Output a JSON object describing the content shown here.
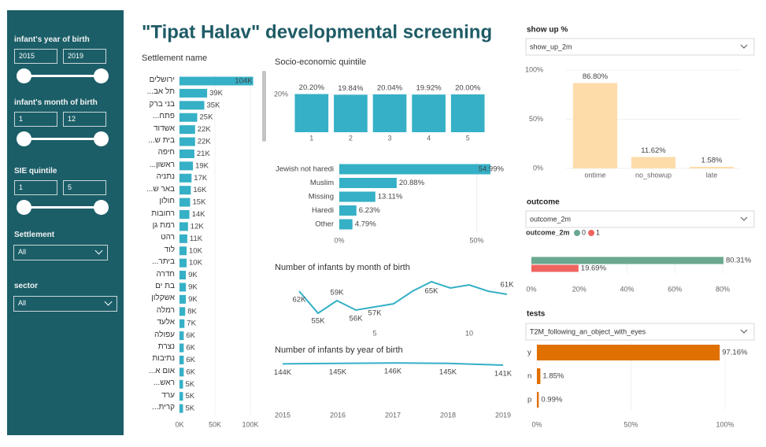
{
  "sidebar": {
    "slicers": [
      {
        "label": "infant's year of birth",
        "range": [
          2015,
          2019
        ]
      },
      {
        "label": "infant's month of birth",
        "range": [
          1,
          12
        ]
      },
      {
        "label": "SIE quintile",
        "range": [
          1,
          5
        ]
      }
    ],
    "dropdowns": [
      {
        "label": "Settlement",
        "value": "All"
      },
      {
        "label": "sector",
        "value": "All"
      }
    ]
  },
  "title": "\"Tipat Halav\" developmental screening",
  "chart_data": [
    {
      "type": "hbar",
      "title": "Settlement name",
      "categories": [
        "ירושלים",
        "תל אב...",
        "בני ברק",
        "פתח...",
        "אשדוד",
        "בית ש...",
        "חיפה",
        "ראשון...",
        "נתניה",
        "באר ש...",
        "חולון",
        "רחובות",
        "רמת גן",
        "רהט",
        "לוד",
        "ביתר...",
        "חדרה",
        "בת ים",
        "אשקלון",
        "רמלה",
        "אלעד",
        "עפולה",
        "נצרת",
        "נתיבות",
        "אום א...",
        "ראש...",
        "ערד",
        "קרית..."
      ],
      "values": [
        104000,
        39000,
        35000,
        25000,
        22000,
        22000,
        21000,
        19000,
        17000,
        16000,
        15000,
        14000,
        12000,
        11000,
        10000,
        10000,
        9000,
        9000,
        9000,
        8000,
        7000,
        6000,
        6000,
        6000,
        6000,
        5000,
        5000,
        5000
      ],
      "value_labels": [
        "104K",
        "39K",
        "35K",
        "25K",
        "22K",
        "22K",
        "21K",
        "19K",
        "17K",
        "16K",
        "15K",
        "14K",
        "12K",
        "11K",
        "10K",
        "10K",
        "9K",
        "9K",
        "9K",
        "8K",
        "7K",
        "6K",
        "6K",
        "6K",
        "6K",
        "5K",
        "5K",
        "5K"
      ],
      "color": "#35b0c6",
      "xlim": [
        0,
        105000
      ],
      "xticks": [
        {
          "value": 0,
          "label": "0K"
        },
        {
          "value": 50000,
          "label": "50K"
        },
        {
          "value": 100000,
          "label": "100K"
        }
      ]
    },
    {
      "type": "bar",
      "title": "Socio-economic quintile",
      "categories": [
        1,
        2,
        3,
        4,
        5
      ],
      "values": [
        20.2,
        19.84,
        20.04,
        19.92,
        20
      ],
      "value_labels": [
        "20.20%",
        "19.84%",
        "20.04%",
        "19.92%",
        "20.00%"
      ],
      "color": "#35b0c6",
      "ylim": [
        0,
        21
      ],
      "yticks": [
        {
          "value": 20,
          "label": "20%"
        }
      ]
    },
    {
      "type": "hbar",
      "categories": [
        "Jewish not haredi",
        "Muslim",
        "Missing",
        "Haredi",
        "Other"
      ],
      "values": [
        54.99,
        20.88,
        13.11,
        6.23,
        4.79
      ],
      "value_labels": [
        "54.99%",
        "20.88%",
        "13.11%",
        "6.23%",
        "4.79%"
      ],
      "color": "#35b0c6",
      "xlim": [
        0,
        55
      ],
      "xticks": [
        {
          "value": 0,
          "label": "0%"
        },
        {
          "value": 50,
          "label": "50%"
        }
      ]
    },
    {
      "type": "line",
      "title": "Number of infants by month of birth",
      "x": [
        1,
        2,
        3,
        4,
        5,
        6,
        7,
        8,
        9,
        10,
        11,
        12
      ],
      "values": [
        62000,
        55000,
        59000,
        56000,
        57000,
        58000,
        62000,
        65000,
        63000,
        64000,
        62000,
        61000
      ],
      "value_labels": [
        "62K",
        "55K",
        "59K",
        "56K",
        "57K",
        null,
        null,
        "65K",
        null,
        null,
        null,
        "61K"
      ],
      "color": "#35b0c6",
      "xlim": [
        1,
        12
      ],
      "xticks": [
        5,
        10
      ],
      "ylim": [
        54000,
        66000
      ]
    },
    {
      "type": "line",
      "title": "Number of infants by year of birth",
      "x": [
        2015,
        2016,
        2017,
        2018,
        2019
      ],
      "values": [
        144000,
        145000,
        146000,
        145000,
        141000
      ],
      "value_labels": [
        "144K",
        "145K",
        "146K",
        "145K",
        "141K"
      ],
      "color": "#35b0c6",
      "xlim": [
        2015,
        2019
      ],
      "xticks": [
        2015,
        2016,
        2017,
        2018,
        2019
      ],
      "ylim": [
        0,
        150000
      ]
    },
    {
      "type": "bar",
      "title": "show up %",
      "dropdown": "show_up_2m",
      "categories": [
        "ontime",
        "no_showup",
        "late"
      ],
      "values": [
        86.8,
        11.62,
        1.58
      ],
      "value_labels": [
        "86.80%",
        "11.62%",
        "1.58%"
      ],
      "color": "#fddcaa",
      "ylim": [
        0,
        100
      ],
      "yticks": [
        {
          "value": 0,
          "label": "0%"
        },
        {
          "value": 50,
          "label": "50%"
        },
        {
          "value": 100,
          "label": "100%"
        }
      ]
    },
    {
      "type": "hbar",
      "title": "outcome",
      "dropdown": "outcome_2m",
      "legend_title": "outcome_2m",
      "categories": [
        0,
        1
      ],
      "values": [
        80.31,
        19.69
      ],
      "value_labels": [
        "80.31%",
        "19.69%"
      ],
      "colors": [
        "#6aa88f",
        "#f0645f"
      ],
      "xlim": [
        0,
        80
      ],
      "xticks": [
        {
          "value": 0,
          "label": "0%"
        },
        {
          "value": 20,
          "label": "20%"
        },
        {
          "value": 40,
          "label": "40%"
        },
        {
          "value": 60,
          "label": "60%"
        },
        {
          "value": 80,
          "label": "80%"
        }
      ]
    },
    {
      "type": "hbar",
      "title": "tests",
      "dropdown": "T2M_following_an_object_with_eyes",
      "categories": [
        "y",
        "n",
        "p"
      ],
      "values": [
        97.16,
        1.85,
        0.99
      ],
      "value_labels": [
        "97.16%",
        "1.85%",
        "0.99%"
      ],
      "color": "#e07000",
      "xlim": [
        0,
        100
      ],
      "xticks": [
        {
          "value": 0,
          "label": "0%"
        },
        {
          "value": 50,
          "label": "50%"
        },
        {
          "value": 100,
          "label": "100%"
        }
      ]
    }
  ]
}
